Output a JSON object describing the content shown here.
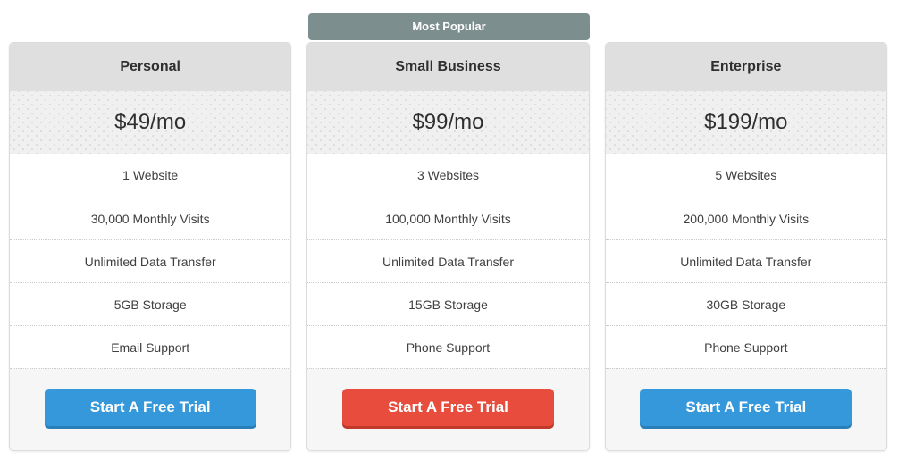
{
  "badge": {
    "label": "Most Popular",
    "background": "#7d8e8f",
    "text_color": "#ffffff"
  },
  "colors": {
    "page_background": "#ffffff",
    "card_header_bg": "#e0dfdf",
    "card_price_bg": "#f1f0f0",
    "card_row_bg": "#ffffff",
    "card_footer_bg": "#f7f6f6",
    "card_border": "#dcdcdc",
    "row_divider": "#cccccc",
    "heading_text": "#2f2f2f",
    "feature_text": "#404040",
    "button_blue": "#3498db",
    "button_blue_shadow": "#2980b9",
    "button_red": "#e74c3c",
    "button_red_shadow": "#c0392b"
  },
  "plans": [
    {
      "name": "Personal",
      "price": "$49/mo",
      "most_popular": false,
      "features": [
        "1 Website",
        "30,000 Monthly Visits",
        "Unlimited Data Transfer",
        "5GB Storage",
        "Email Support"
      ],
      "cta_label": "Start A Free Trial",
      "cta_color": "blue"
    },
    {
      "name": "Small Business",
      "price": "$99/mo",
      "most_popular": true,
      "features": [
        "3 Websites",
        "100,000 Monthly Visits",
        "Unlimited Data Transfer",
        "15GB Storage",
        "Phone Support"
      ],
      "cta_label": "Start A Free Trial",
      "cta_color": "red"
    },
    {
      "name": "Enterprise",
      "price": "$199/mo",
      "most_popular": false,
      "features": [
        "5 Websites",
        "200,000 Monthly Visits",
        "Unlimited Data Transfer",
        "30GB Storage",
        "Phone Support"
      ],
      "cta_label": "Start A Free Trial",
      "cta_color": "blue"
    }
  ]
}
